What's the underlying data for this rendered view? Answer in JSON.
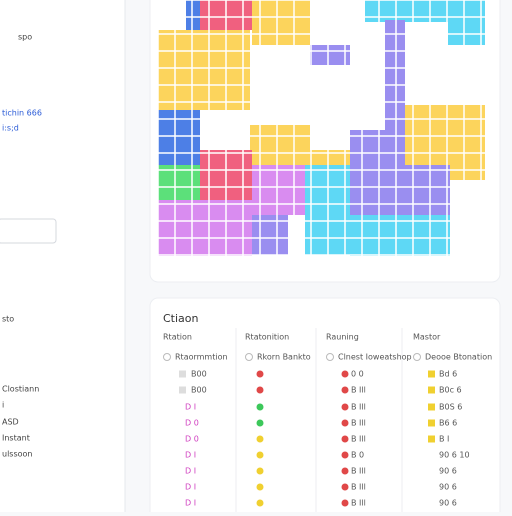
{
  "sidebar": {
    "items": [
      "spo",
      "tichin 666",
      "i:s;d",
      "sto",
      "Clostiann",
      "i",
      "ASD",
      "Instant",
      "ulssoon"
    ]
  },
  "table": {
    "title": "Ctiaon",
    "columns": [
      {
        "header": "Rtation",
        "cells": [
          "Rtaormmtion",
          "B00",
          "B00",
          "D I",
          "D 0",
          "D 0",
          "D I",
          "D I",
          "D I",
          "D I"
        ]
      },
      {
        "header": "Rtatonition",
        "cells": [
          "Rkorn Bankto"
        ]
      },
      {
        "header": "Rauning",
        "cells": [
          "Clnest Ioweatshop",
          "0 0",
          "B Ill",
          "B Ill",
          "B Ill",
          "B Ill",
          "B 0",
          "B Ill",
          "B Ill",
          "B Ill"
        ]
      },
      {
        "header": "Mastor",
        "cells": [
          "Deooe Btonation",
          "Bd 6",
          "B0c 6",
          "B0S 6",
          "B6 6",
          "B I",
          "90 6 10",
          "90 6",
          "90 6",
          "90 6"
        ]
      }
    ]
  }
}
